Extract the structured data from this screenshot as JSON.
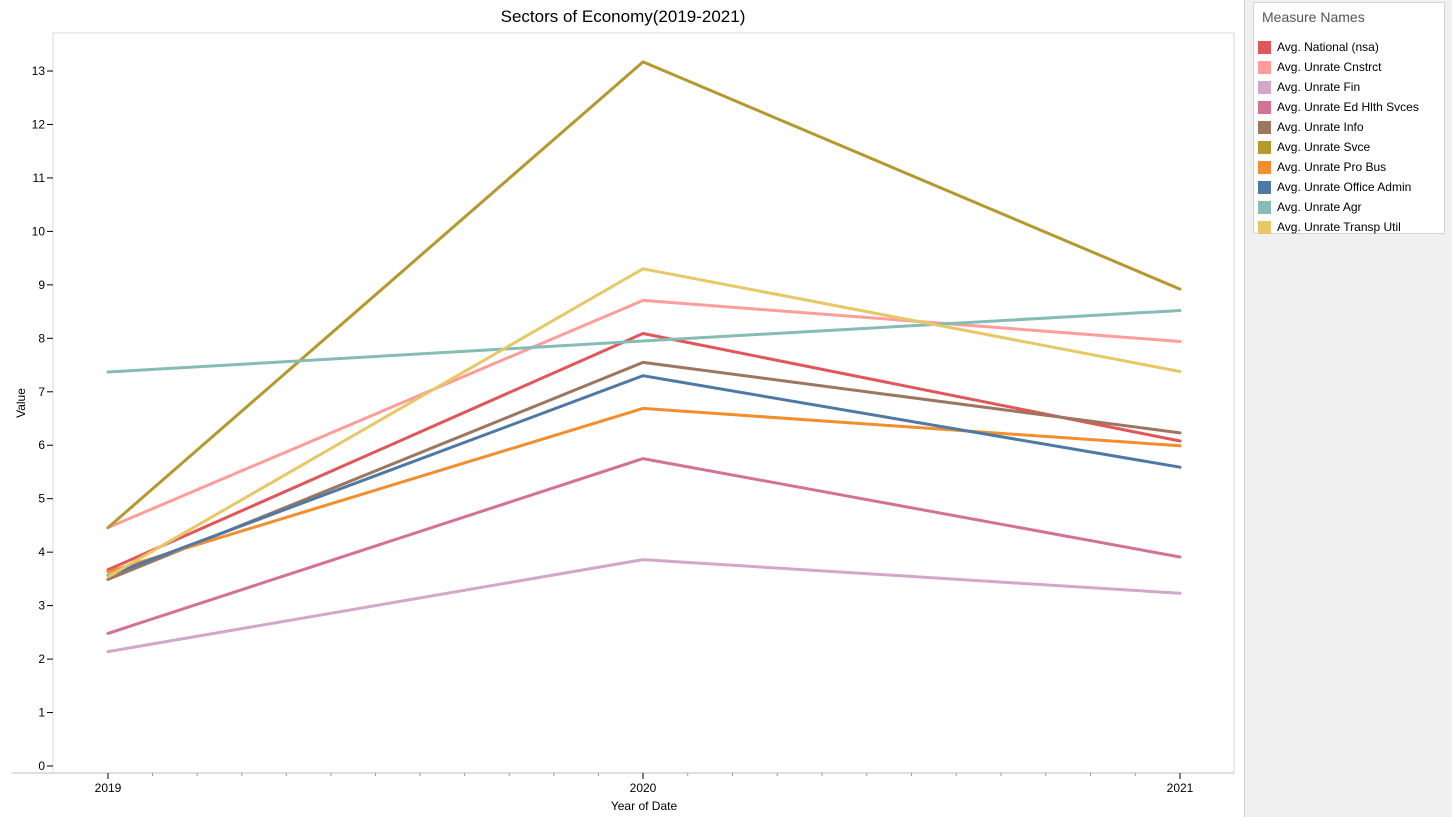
{
  "chart_data": {
    "type": "line",
    "title": "Sectors of Economy(2019-2021)",
    "xlabel": "Year of Date",
    "ylabel": "Value",
    "x": [
      "2019",
      "2020",
      "2021"
    ],
    "ylim": [
      0,
      13.8
    ],
    "yticks": [
      0,
      1,
      2,
      3,
      4,
      5,
      6,
      7,
      8,
      9,
      10,
      11,
      12,
      13
    ],
    "grid": false,
    "legend_title": "Measure Names",
    "legend_position": "right",
    "series": [
      {
        "name": "Avg. National (nsa)",
        "color": "#e15759",
        "values": [
          3.67,
          8.09,
          6.08
        ]
      },
      {
        "name": "Avg. Unrate Cnstrct",
        "color": "#ff9d9a",
        "values": [
          4.46,
          8.71,
          7.94
        ]
      },
      {
        "name": "Avg. Unrate Fin",
        "color": "#d4a6c8",
        "values": [
          2.14,
          3.86,
          3.23
        ]
      },
      {
        "name": "Avg. Unrate Ed Hlth Svces",
        "color": "#d37295",
        "values": [
          2.48,
          5.75,
          3.91
        ]
      },
      {
        "name": "Avg. Unrate Info",
        "color": "#9d7660",
        "values": [
          3.49,
          7.55,
          6.23
        ]
      },
      {
        "name": "Avg. Unrate Svce",
        "color": "#b6992d",
        "values": [
          4.46,
          13.17,
          8.92
        ]
      },
      {
        "name": "Avg. Unrate Pro Bus",
        "color": "#f28e2b",
        "values": [
          3.63,
          6.69,
          5.99
        ]
      },
      {
        "name": "Avg. Unrate Office Admin",
        "color": "#4e79a7",
        "values": [
          3.56,
          7.3,
          5.59
        ]
      },
      {
        "name": "Avg. Unrate Agr",
        "color": "#86bcb6",
        "values": [
          7.37,
          7.95,
          8.52
        ]
      },
      {
        "name": "Avg. Unrate Transp Util",
        "color": "#e8c865",
        "values": [
          3.54,
          9.3,
          7.38
        ]
      }
    ]
  }
}
